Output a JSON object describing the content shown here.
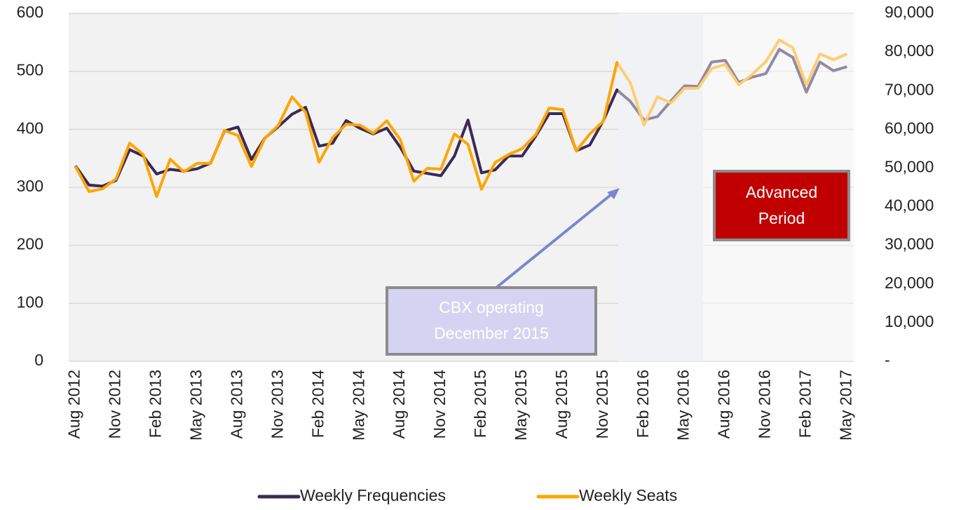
{
  "chart_data": {
    "type": "line",
    "categories": [
      "Aug 2012",
      null,
      null,
      "Nov 2012",
      null,
      null,
      "Feb 2013",
      null,
      null,
      "May 2013",
      null,
      null,
      "Aug 2013",
      null,
      null,
      "Nov 2013",
      null,
      null,
      "Feb 2014",
      null,
      null,
      "May 2014",
      null,
      null,
      "Aug 2014",
      null,
      null,
      "Nov 2014",
      null,
      null,
      "Feb 2015",
      null,
      null,
      "May 2015",
      null,
      null,
      "Aug 2015",
      null,
      null,
      "Nov 2015",
      null,
      null,
      "Feb 2016",
      null,
      null,
      "May 2016",
      null,
      null,
      "Aug 2016",
      null,
      null,
      "Nov 2016",
      null,
      null,
      "Feb 2017",
      null,
      null,
      "May 2017"
    ],
    "series": [
      {
        "name": "Weekly Frequencies",
        "color": "#3b2a55",
        "axis": "y",
        "values": [
          337,
          304,
          302,
          312,
          365,
          354,
          323,
          331,
          328,
          332,
          342,
          397,
          404,
          348,
          385,
          405,
          426,
          438,
          371,
          376,
          415,
          402,
          392,
          402,
          369,
          328,
          324,
          320,
          354,
          416,
          325,
          330,
          354,
          354,
          388,
          427,
          427,
          363,
          373,
          415,
          468,
          448,
          416,
          422,
          449,
          475,
          474,
          516,
          519,
          481,
          490,
          496,
          538,
          524,
          464,
          516,
          501,
          508
        ]
      },
      {
        "name": "Weekly Seats",
        "color": "#ffa500",
        "axis": "y2",
        "values": [
          50400,
          43900,
          44600,
          47200,
          56400,
          53500,
          42600,
          52300,
          49000,
          51200,
          51200,
          59700,
          58400,
          50400,
          57700,
          61100,
          68400,
          64400,
          51500,
          57900,
          61300,
          61100,
          59000,
          62200,
          57300,
          46600,
          49900,
          49700,
          58800,
          56100,
          44500,
          51400,
          53500,
          55000,
          58600,
          65500,
          65100,
          54400,
          58800,
          62100,
          77300,
          72000,
          61100,
          68400,
          66800,
          70600,
          70600,
          75700,
          76800,
          71500,
          74200,
          77500,
          83100,
          81100,
          71500,
          79500,
          78000,
          79500
        ]
      }
    ],
    "ylim": [
      0,
      600
    ],
    "yticks": [
      0,
      100,
      200,
      300,
      400,
      500,
      600
    ],
    "y2lim": [
      0,
      90000
    ],
    "y2ticks": [
      {
        "value": 0,
        "label": "-"
      },
      {
        "value": 10000,
        "label": "10,000"
      },
      {
        "value": 20000,
        "label": "20,000"
      },
      {
        "value": 30000,
        "label": "30,000"
      },
      {
        "value": 40000,
        "label": "40,000"
      },
      {
        "value": 50000,
        "label": "50,000"
      },
      {
        "value": 60000,
        "label": "60,000"
      },
      {
        "value": 70000,
        "label": "70,000"
      },
      {
        "value": 80000,
        "label": "80,000"
      },
      {
        "value": 90000,
        "label": "90,000"
      }
    ],
    "grid": true,
    "legend": "bottom",
    "annotations": [
      {
        "lines": [
          "CBX operating",
          "December 2015"
        ]
      },
      {
        "lines": [
          "Advanced",
          "Period"
        ]
      }
    ]
  }
}
